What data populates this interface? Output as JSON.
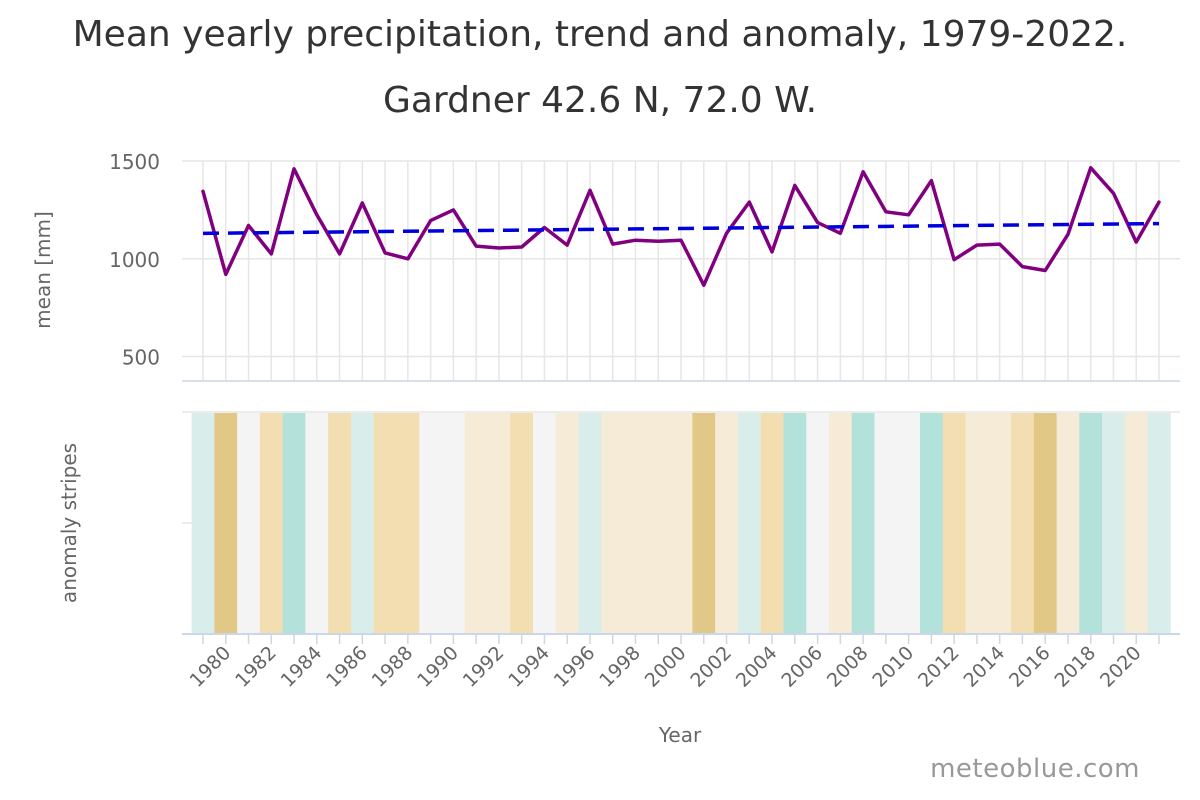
{
  "title": "Mean yearly precipitation, trend and anomaly, 1979-2022.",
  "subtitle": "Gardner 42.6 N, 72.0 W.",
  "credit": "meteoblue.com",
  "colors": {
    "mean_line": "#800080",
    "trend_line": "#0000dd",
    "grid": "#e6e6e6",
    "axis_text": "#666666",
    "wet_strong": "#b3e2db",
    "wet_light": "#d9eeea",
    "neutral": "#f4f4f4",
    "dry_light": "#f5ebd6",
    "dry_medium": "#f2deb0",
    "dry_strong": "#e2c887"
  },
  "chart_data": {
    "type": "line",
    "title": "Mean yearly precipitation, trend and anomaly, 1979-2022.",
    "subtitle": "Gardner 42.6 N, 72.0 W.",
    "xlabel": "Year",
    "ylabel": "mean [mm]",
    "ylabel_stripes": "anomaly stripes",
    "ylim": [
      380,
      1500
    ],
    "yticks": [
      500,
      1000,
      1500
    ],
    "x_tick_labels": [
      "1980",
      "1982",
      "1984",
      "1986",
      "1988",
      "1990",
      "1992",
      "1994",
      "1996",
      "1998",
      "2000",
      "2002",
      "2004",
      "2006",
      "2008",
      "2010",
      "2012",
      "2014",
      "2016",
      "2018",
      "2020"
    ],
    "years": [
      1979,
      1980,
      1981,
      1982,
      1983,
      1984,
      1985,
      1986,
      1987,
      1988,
      1989,
      1990,
      1991,
      1992,
      1993,
      1994,
      1995,
      1996,
      1997,
      1998,
      1999,
      2000,
      2001,
      2002,
      2003,
      2004,
      2005,
      2006,
      2007,
      2008,
      2009,
      2010,
      2011,
      2012,
      2013,
      2014,
      2015,
      2016,
      2017,
      2018,
      2019,
      2020,
      2021
    ],
    "series": [
      {
        "name": "mean",
        "values": [
          1345,
          920,
          1170,
          1025,
          1460,
          1225,
          1025,
          1285,
          1030,
          1000,
          1195,
          1250,
          1065,
          1055,
          1060,
          1160,
          1070,
          1350,
          1075,
          1095,
          1090,
          1095,
          865,
          1130,
          1290,
          1035,
          1375,
          1185,
          1130,
          1445,
          1240,
          1225,
          1400,
          995,
          1070,
          1075,
          960,
          940,
          1125,
          1465,
          1335,
          1085,
          1290
        ]
      },
      {
        "name": "trend",
        "style": "dashed",
        "start": [
          1979,
          1130
        ],
        "end": [
          2021,
          1180
        ]
      }
    ],
    "anomaly_stripes": [
      "wet_light",
      "dry_strong",
      "neutral",
      "dry_medium",
      "wet_strong",
      "neutral",
      "dry_medium",
      "wet_light",
      "dry_medium",
      "dry_medium",
      "neutral",
      "neutral",
      "dry_light",
      "dry_light",
      "dry_medium",
      "neutral",
      "dry_light",
      "wet_light",
      "dry_light",
      "dry_light",
      "dry_light",
      "dry_light",
      "dry_strong",
      "dry_light",
      "wet_light",
      "dry_medium",
      "wet_strong",
      "neutral",
      "dry_light",
      "wet_strong",
      "neutral",
      "neutral",
      "wet_strong",
      "dry_medium",
      "dry_light",
      "dry_light",
      "dry_medium",
      "dry_strong",
      "dry_light",
      "wet_strong",
      "wet_light",
      "dry_light",
      "wet_light"
    ]
  }
}
